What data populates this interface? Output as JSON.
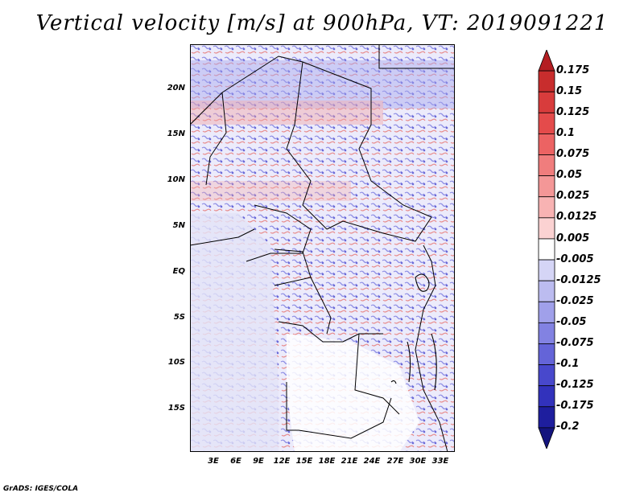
{
  "title": "Vertical velocity [m/s] at 900hPa, VT: 2019091221",
  "latitude_labels": [
    "20N",
    "15N",
    "10N",
    "5N",
    "EQ",
    "5S",
    "10S",
    "15S"
  ],
  "longitude_labels": [
    "3E",
    "6E",
    "9E",
    "12E",
    "15E",
    "18E",
    "21E",
    "24E",
    "27E",
    "30E",
    "33E"
  ],
  "colorbar_levels": [
    "0.175",
    "0.15",
    "0.125",
    "0.1",
    "0.075",
    "0.05",
    "0.025",
    "0.0125",
    "0.005",
    "-0.005",
    "-0.0125",
    "-0.025",
    "-0.05",
    "-0.075",
    "-0.1",
    "-0.125",
    "-0.175",
    "-0.2"
  ],
  "colorbar_colors": [
    "#b41e22",
    "#c82d2d",
    "#d83c3c",
    "#e44b4b",
    "#ec6363",
    "#f07d7d",
    "#f49797",
    "#f8b3b3",
    "#fbd2d2",
    "#ffffff",
    "#d5d5f6",
    "#bcbcf0",
    "#a0a0ea",
    "#8282e2",
    "#6464d8",
    "#4848cc",
    "#3232bc",
    "#1e1e9e",
    "#14147e"
  ],
  "credit": "GrADS: IGES/COLA"
}
